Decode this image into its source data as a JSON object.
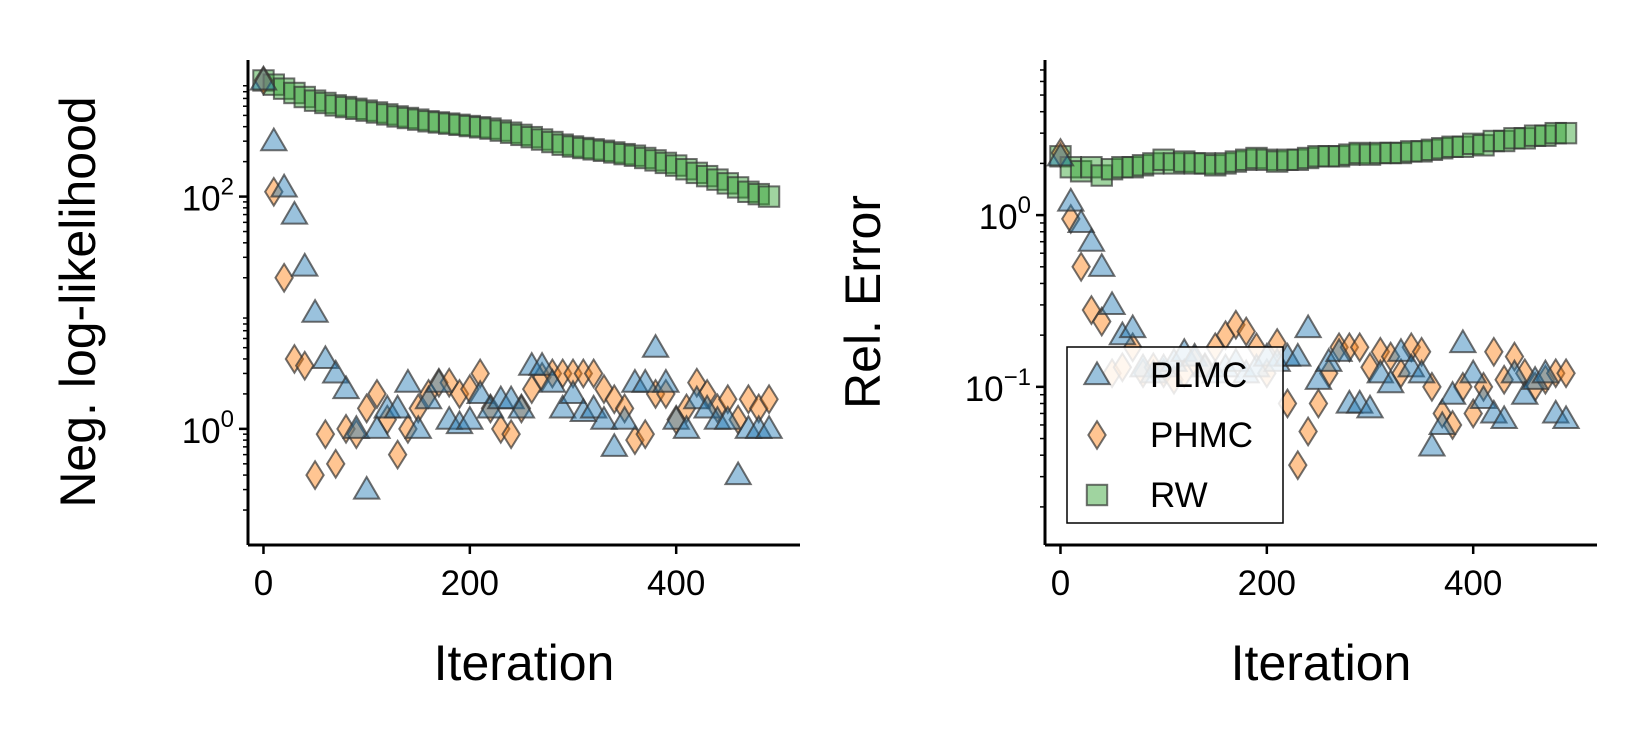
{
  "colors": {
    "PLMC": "#1f77b4",
    "PHMC": "#ff7f0e",
    "RW": "#2ca02c",
    "edge": "#333333"
  },
  "legend": {
    "placement": "lower-left of right panel",
    "entries": [
      {
        "name": "PLMC",
        "marker": "triangle"
      },
      {
        "name": "PHMC",
        "marker": "diamond"
      },
      {
        "name": "RW",
        "marker": "square"
      }
    ]
  },
  "chart_data": [
    {
      "type": "scatter",
      "xlabel": "Iteration",
      "ylabel": "Neg. log-likelihood",
      "yscale": "log",
      "xlim": [
        -15,
        520
      ],
      "ylim": [
        0.1,
        1500
      ],
      "xticks": [
        {
          "value": 0,
          "label": "0"
        },
        {
          "value": 200,
          "label": "200"
        },
        {
          "value": 400,
          "label": "400"
        }
      ],
      "yticks": [
        {
          "value": 1,
          "base": "10",
          "exp": "0"
        },
        {
          "value": 100,
          "base": "10",
          "exp": "2"
        }
      ],
      "grid": false,
      "series": [
        {
          "name": "PLMC",
          "marker": "triangle",
          "x": [
            0,
            10,
            20,
            30,
            40,
            50,
            60,
            70,
            80,
            90,
            100,
            110,
            120,
            130,
            140,
            150,
            160,
            170,
            180,
            190,
            200,
            210,
            220,
            230,
            240,
            250,
            260,
            270,
            280,
            290,
            300,
            310,
            320,
            330,
            340,
            350,
            360,
            370,
            380,
            390,
            400,
            410,
            420,
            430,
            440,
            450,
            460,
            470,
            480,
            490
          ],
          "y": [
            1000,
            300,
            120,
            70,
            25,
            10,
            4,
            3,
            2.2,
            1,
            0.3,
            1,
            1.5,
            1.5,
            2.5,
            1,
            1.8,
            2.5,
            1.2,
            1.1,
            1.2,
            2,
            1.5,
            1.8,
            1.8,
            1.5,
            3.5,
            3.5,
            2.5,
            1.5,
            2,
            1.4,
            1.5,
            1.2,
            0.7,
            1.2,
            2.5,
            2.5,
            5,
            2.5,
            1.2,
            1,
            1.8,
            1.5,
            1.2,
            1.2,
            0.4,
            1,
            1,
            1
          ]
        },
        {
          "name": "PHMC",
          "marker": "diamond",
          "x": [
            0,
            10,
            20,
            30,
            40,
            50,
            60,
            70,
            80,
            90,
            100,
            110,
            120,
            130,
            140,
            150,
            160,
            170,
            180,
            190,
            200,
            210,
            220,
            230,
            240,
            250,
            260,
            270,
            280,
            290,
            300,
            310,
            320,
            330,
            340,
            350,
            360,
            370,
            380,
            390,
            400,
            410,
            420,
            430,
            440,
            450,
            460,
            470,
            480,
            490
          ],
          "y": [
            1000,
            110,
            20,
            4,
            3.5,
            0.4,
            0.9,
            0.5,
            1,
            0.9,
            1.5,
            2,
            1.2,
            0.6,
            1,
            1.5,
            2,
            2.5,
            2.5,
            2,
            2.2,
            3,
            1.5,
            1,
            0.9,
            1.5,
            2.2,
            2.8,
            3,
            3,
            3,
            3,
            3,
            2.2,
            1.8,
            1.5,
            0.8,
            0.9,
            2,
            2,
            1.2,
            1.5,
            2.5,
            2,
            1.5,
            1.8,
            1.2,
            1.8,
            1.5,
            1.8
          ]
        },
        {
          "name": "RW",
          "marker": "square",
          "x": [
            0,
            10,
            20,
            30,
            40,
            50,
            60,
            70,
            80,
            90,
            100,
            110,
            120,
            130,
            140,
            150,
            160,
            170,
            180,
            190,
            200,
            210,
            220,
            230,
            240,
            250,
            260,
            270,
            280,
            290,
            300,
            310,
            320,
            330,
            340,
            350,
            360,
            370,
            380,
            390,
            400,
            410,
            420,
            430,
            440,
            450,
            460,
            470,
            480,
            490
          ],
          "y": [
            1000,
            920,
            850,
            780,
            720,
            670,
            640,
            610,
            590,
            570,
            550,
            530,
            510,
            490,
            475,
            460,
            445,
            435,
            425,
            415,
            405,
            395,
            385,
            370,
            355,
            340,
            325,
            310,
            295,
            280,
            270,
            262,
            255,
            248,
            240,
            232,
            225,
            215,
            205,
            195,
            185,
            172,
            160,
            150,
            140,
            130,
            120,
            110,
            105,
            100
          ]
        }
      ]
    },
    {
      "type": "scatter",
      "xlabel": "Iteration",
      "ylabel": "Rel. Error",
      "yscale": "log",
      "xlim": [
        -15,
        520
      ],
      "ylim": [
        0.012,
        8
      ],
      "xticks": [
        {
          "value": 0,
          "label": "0"
        },
        {
          "value": 200,
          "label": "200"
        },
        {
          "value": 400,
          "label": "400"
        }
      ],
      "yticks": [
        {
          "value": 0.1,
          "base": "10",
          "exp": "−1"
        },
        {
          "value": 1,
          "base": "10",
          "exp": "0"
        }
      ],
      "grid": false,
      "series": [
        {
          "name": "PLMC",
          "marker": "triangle",
          "x": [
            0,
            10,
            20,
            30,
            40,
            50,
            60,
            70,
            80,
            90,
            100,
            110,
            120,
            130,
            140,
            150,
            160,
            170,
            180,
            190,
            200,
            210,
            220,
            230,
            240,
            250,
            260,
            270,
            280,
            290,
            300,
            310,
            320,
            330,
            340,
            350,
            360,
            370,
            380,
            390,
            400,
            410,
            420,
            430,
            440,
            450,
            460,
            470,
            480,
            490
          ],
          "y": [
            2.2,
            1.2,
            0.9,
            0.7,
            0.5,
            0.3,
            0.2,
            0.22,
            0.13,
            0.12,
            0.13,
            0.14,
            0.16,
            0.15,
            0.13,
            0.12,
            0.13,
            0.14,
            0.12,
            0.13,
            0.15,
            0.14,
            0.15,
            0.15,
            0.22,
            0.11,
            0.14,
            0.16,
            0.08,
            0.08,
            0.075,
            0.12,
            0.105,
            0.16,
            0.13,
            0.12,
            0.045,
            0.06,
            0.09,
            0.18,
            0.12,
            0.085,
            0.07,
            0.065,
            0.12,
            0.09,
            0.11,
            0.12,
            0.07,
            0.065
          ]
        },
        {
          "name": "PHMC",
          "marker": "diamond",
          "x": [
            0,
            10,
            20,
            30,
            40,
            50,
            60,
            70,
            80,
            90,
            100,
            110,
            120,
            130,
            140,
            150,
            160,
            170,
            180,
            190,
            200,
            210,
            220,
            230,
            240,
            250,
            260,
            270,
            280,
            290,
            300,
            310,
            320,
            330,
            340,
            350,
            360,
            370,
            380,
            390,
            400,
            410,
            420,
            430,
            440,
            450,
            460,
            470,
            480,
            490
          ],
          "y": [
            2.3,
            0.95,
            0.5,
            0.28,
            0.24,
            0.12,
            0.13,
            0.17,
            0.12,
            0.13,
            0.12,
            0.11,
            0.12,
            0.14,
            0.13,
            0.17,
            0.2,
            0.23,
            0.21,
            0.17,
            0.12,
            0.18,
            0.08,
            0.035,
            0.055,
            0.08,
            0.12,
            0.17,
            0.17,
            0.17,
            0.13,
            0.16,
            0.15,
            0.12,
            0.17,
            0.16,
            0.1,
            0.07,
            0.06,
            0.1,
            0.07,
            0.1,
            0.16,
            0.11,
            0.15,
            0.12,
            0.1,
            0.11,
            0.12,
            0.12
          ]
        },
        {
          "name": "RW",
          "marker": "square",
          "x": [
            0,
            10,
            20,
            30,
            40,
            50,
            60,
            70,
            80,
            90,
            100,
            110,
            120,
            130,
            140,
            150,
            160,
            170,
            180,
            190,
            200,
            210,
            220,
            230,
            240,
            250,
            260,
            270,
            280,
            290,
            300,
            310,
            320,
            330,
            340,
            350,
            360,
            370,
            380,
            390,
            400,
            410,
            420,
            430,
            440,
            450,
            460,
            470,
            480,
            490
          ],
          "y": [
            2.2,
            1.9,
            1.8,
            1.9,
            1.7,
            1.85,
            1.9,
            1.9,
            1.95,
            2.0,
            2.1,
            2.0,
            2.05,
            2.0,
            2.0,
            1.95,
            2.0,
            2.05,
            2.1,
            2.15,
            2.1,
            2.05,
            2.1,
            2.1,
            2.15,
            2.2,
            2.2,
            2.2,
            2.25,
            2.3,
            2.25,
            2.3,
            2.3,
            2.3,
            2.35,
            2.35,
            2.4,
            2.45,
            2.5,
            2.5,
            2.6,
            2.55,
            2.7,
            2.7,
            2.8,
            2.8,
            2.9,
            2.9,
            3.0,
            3.0
          ]
        }
      ]
    }
  ]
}
